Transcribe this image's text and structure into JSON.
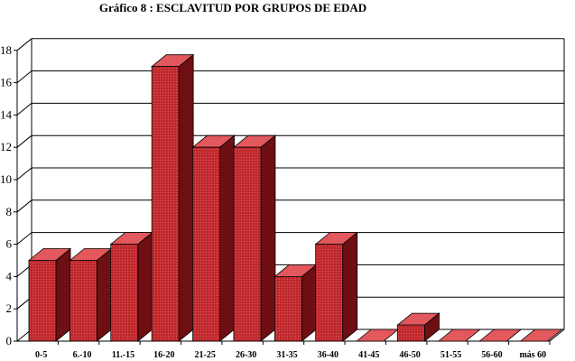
{
  "chart_data": {
    "type": "bar",
    "title": "Gráfico 8 : ESCLAVITUD POR GRUPOS DE EDAD",
    "xlabel": "",
    "ylabel": "",
    "categories": [
      "0-5",
      "6.-10",
      "11.-15",
      "16-20",
      "21-25",
      "26-30",
      "31-35",
      "36-40",
      "41-45",
      "46-50",
      "51-55",
      "56-60",
      "más 60"
    ],
    "values": [
      5,
      5,
      6,
      17,
      12,
      12,
      4,
      6,
      0,
      1,
      0,
      0,
      0
    ],
    "ylim": [
      0,
      18
    ],
    "yticks": [
      0,
      2,
      4,
      6,
      8,
      10,
      12,
      14,
      16,
      18
    ],
    "grid": true,
    "bar_style": "3d",
    "colors": {
      "front": "#c0282c",
      "side": "#6e0f14",
      "top": "#e2585c",
      "grid": "#000000",
      "background": "#ffffff"
    }
  }
}
